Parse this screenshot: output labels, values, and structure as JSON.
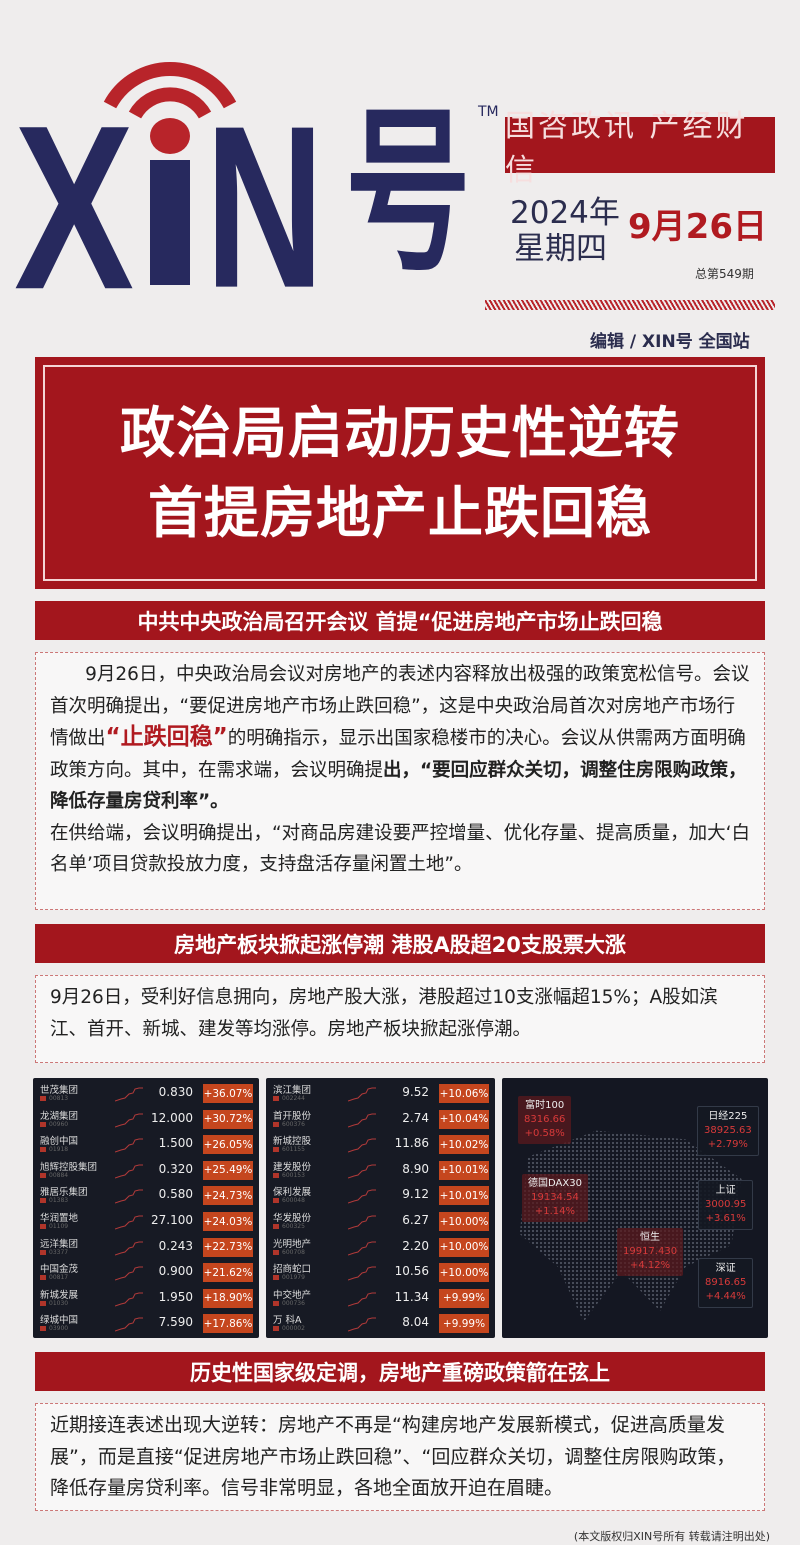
{
  "logo": {
    "text": "XIN号",
    "tm": "TM"
  },
  "tagline": "国咨政讯 产经财信",
  "date": {
    "year": "2024年",
    "weekday": "星期四",
    "day": "9月26日",
    "issue": "总第549期"
  },
  "editor": "编辑 / XIN号 全国站",
  "headline": {
    "line1": "政治局启动历史性逆转",
    "line2": "首提房地产止跌回稳"
  },
  "section1": {
    "title": "中共中央政治局召开会议 首提“促进房地产市场止跌回稳",
    "p1": "9月26日，中央政治局会议对房地产的表述内容释放出极强的政策宽松信号。会议首次明确提出，“要促进房地产市场止跌回稳”，这是中央政治局首次对房地产市场行情做出",
    "highlight": "“止跌回稳”",
    "p2": "的明确指示，显示出国家稳楼市的决心。会议从供需两方面明确政策方向。其中，在需求端，会议明确提",
    "bold": "出，“要回应群众关切，调整住房限购政策，降低存量房贷利率”。",
    "p3": "在供给端，会议明确提出，“对商品房建设要严控增量、优化存量、提高质量，加大‘白名单’项目贷款投放力度，支持盘活存量闲置土地”。"
  },
  "section2": {
    "title": "房地产板块掀起涨停潮 港股A股超20支股票大涨",
    "text": "9月26日，受利好信息拥向，房地产股大涨，港股超过10支涨幅超15%；A股如滨江、首开、新城、建发等均涨停。房地产板块掀起涨停潮。"
  },
  "hk_stocks": [
    {
      "name": "世茂集团",
      "code": "00813",
      "price": "0.830",
      "change": "+36.07%"
    },
    {
      "name": "龙湖集团",
      "code": "00960",
      "price": "12.000",
      "change": "+30.72%"
    },
    {
      "name": "融创中国",
      "code": "01918",
      "price": "1.500",
      "change": "+26.05%"
    },
    {
      "name": "旭辉控股集团",
      "code": "00884",
      "price": "0.320",
      "change": "+25.49%"
    },
    {
      "name": "雅居乐集团",
      "code": "01383",
      "price": "0.580",
      "change": "+24.73%"
    },
    {
      "name": "华润置地",
      "code": "01109",
      "price": "27.100",
      "change": "+24.03%"
    },
    {
      "name": "远洋集团",
      "code": "03377",
      "price": "0.243",
      "change": "+22.73%"
    },
    {
      "name": "中国金茂",
      "code": "00817",
      "price": "0.900",
      "change": "+21.62%"
    },
    {
      "name": "新城发展",
      "code": "01030",
      "price": "1.950",
      "change": "+18.90%"
    },
    {
      "name": "绿城中国",
      "code": "03900",
      "price": "7.590",
      "change": "+17.86%"
    }
  ],
  "a_stocks": [
    {
      "name": "滨江集团",
      "code": "002244",
      "price": "9.52",
      "change": "+10.06%"
    },
    {
      "name": "首开股份",
      "code": "600376",
      "price": "2.74",
      "change": "+10.04%"
    },
    {
      "name": "新城控股",
      "code": "601155",
      "price": "11.86",
      "change": "+10.02%"
    },
    {
      "name": "建发股份",
      "code": "600153",
      "price": "8.90",
      "change": "+10.01%"
    },
    {
      "name": "保利发展",
      "code": "600048",
      "price": "9.12",
      "change": "+10.01%"
    },
    {
      "name": "华发股份",
      "code": "600325",
      "price": "6.27",
      "change": "+10.00%"
    },
    {
      "name": "光明地产",
      "code": "600708",
      "price": "2.20",
      "change": "+10.00%"
    },
    {
      "name": "招商蛇口",
      "code": "001979",
      "price": "10.56",
      "change": "+10.00%"
    },
    {
      "name": "中交地产",
      "code": "000736",
      "price": "11.34",
      "change": "+9.99%"
    },
    {
      "name": "万 科A",
      "code": "000002",
      "price": "8.04",
      "change": "+9.99%"
    }
  ],
  "indices": [
    {
      "name": "富时100",
      "value": "8316.66",
      "change": "+0.58%"
    },
    {
      "name": "日经225",
      "value": "38925.63",
      "change": "+2.79%"
    },
    {
      "name": "德国DAX30",
      "value": "19134.54",
      "change": "+1.14%"
    },
    {
      "name": "上证",
      "value": "3000.95",
      "change": "+3.61%"
    },
    {
      "name": "恒生",
      "value": "19917.430",
      "change": "+4.12%"
    },
    {
      "name": "深证",
      "value": "8916.65",
      "change": "+4.44%"
    }
  ],
  "section3": {
    "title": "历史性国家级定调，房地产重磅政策箭在弦上",
    "text": "近期接连表述出现大逆转：房地产不再是“构建房地产发展新模式，促进高质量发展”，而是直接“促进房地产市场止跌回稳”、“回应群众关切，调整住房限购政策，降低存量房贷利率。信号非常明显，各地全面放开迫在眉睫。"
  },
  "copyright": "(本文版权归XIN号所有 转载请注明出处)",
  "colors": {
    "brand_red": "#a3161d",
    "navy": "#27295e",
    "gain": "#c5461e"
  }
}
